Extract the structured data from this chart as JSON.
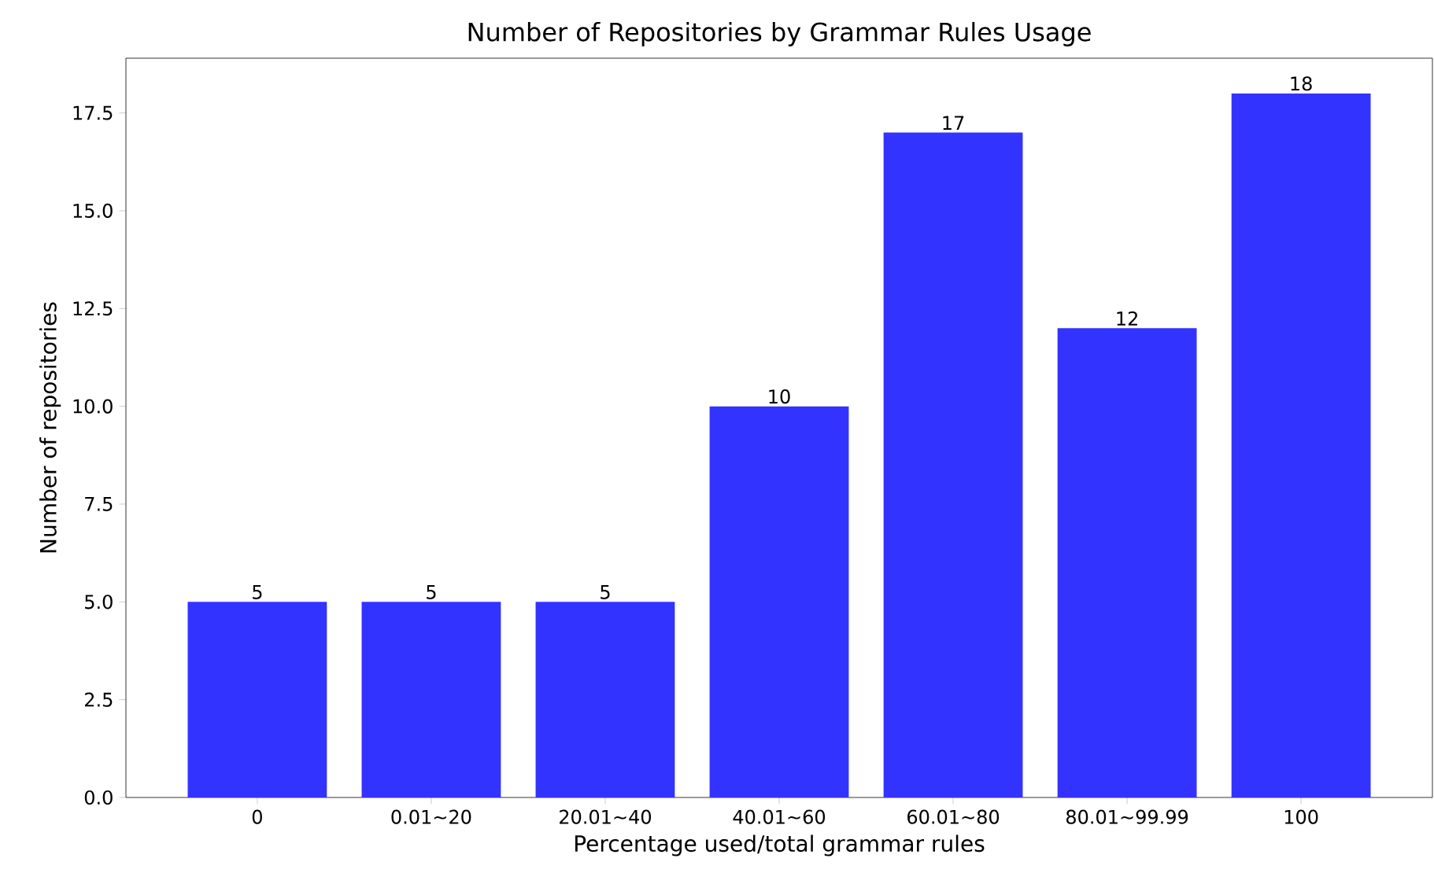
{
  "chart_data": {
    "type": "bar",
    "title": "Number of Repositories by Grammar Rules Usage",
    "xlabel": "Percentage used/total grammar rules",
    "ylabel": "Number of repositories",
    "categories": [
      "0",
      "0.01~20",
      "20.01~40",
      "40.01~60",
      "60.01~80",
      "80.01~99.99",
      "100"
    ],
    "values": [
      5,
      5,
      5,
      10,
      17,
      12,
      18
    ],
    "color": "#3333ff",
    "data_labels": true,
    "ylim": [
      0,
      18.9
    ],
    "yticks": [
      {
        "value": 0,
        "label": "0.0"
      },
      {
        "value": 2.5,
        "label": "2.5"
      },
      {
        "value": 5,
        "label": "5.0"
      },
      {
        "value": 7.5,
        "label": "7.5"
      },
      {
        "value": 10,
        "label": "10.0"
      },
      {
        "value": 12.5,
        "label": "12.5"
      },
      {
        "value": 15,
        "label": "15.0"
      },
      {
        "value": 17.5,
        "label": "17.5"
      }
    ]
  }
}
